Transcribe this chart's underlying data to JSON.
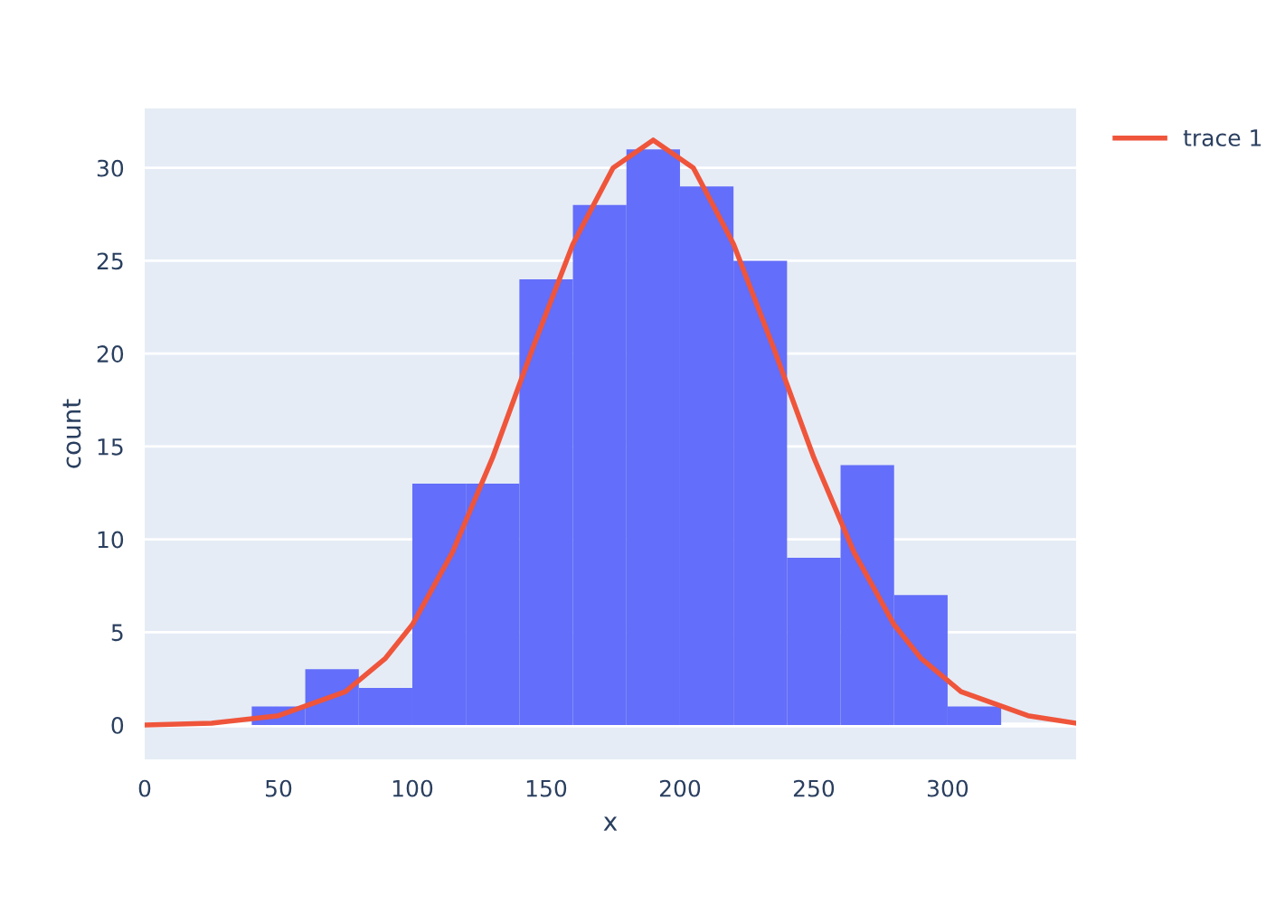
{
  "chart_data": {
    "type": "histogram",
    "xlabel": "x",
    "ylabel": "count",
    "bins": [
      40,
      60,
      80,
      100,
      120,
      140,
      160,
      180,
      200,
      220,
      240,
      260,
      280,
      300,
      320
    ],
    "values": [
      1,
      3,
      2,
      13,
      13,
      24,
      28,
      31,
      29,
      25,
      9,
      14,
      7,
      1
    ],
    "color": "#636efa",
    "series": [
      {
        "type": "line",
        "name": "trace 1",
        "color": "#ef553b",
        "x": [
          0,
          25,
          50,
          75,
          90,
          100,
          115,
          130,
          145,
          160,
          175,
          190,
          205,
          220,
          235,
          250,
          265,
          280,
          290,
          305,
          330,
          348
        ],
        "values": [
          0.0,
          0.1,
          0.5,
          1.8,
          3.6,
          5.4,
          9.3,
          14.4,
          20.3,
          25.9,
          30.0,
          31.5,
          30.0,
          25.9,
          20.3,
          14.4,
          9.3,
          5.4,
          3.6,
          1.8,
          0.5,
          0.1
        ]
      }
    ],
    "xlim": [
      0,
      348
    ],
    "ylim": [
      -1.85,
      33.2
    ],
    "xticks": [
      0,
      50,
      100,
      150,
      200,
      250,
      300
    ],
    "yticks": [
      0,
      5,
      10,
      15,
      20,
      25,
      30
    ],
    "grid": "y",
    "legend": "top right",
    "line_style": "solid",
    "marker": "none"
  }
}
